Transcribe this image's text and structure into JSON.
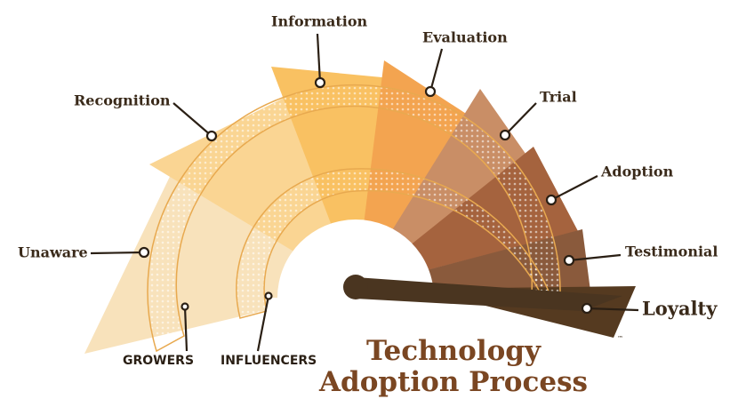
{
  "stages": [
    "Unaware",
    "Recognition",
    "Information",
    "Evaluation",
    "Trial",
    "Adoption",
    "Testimonial",
    "Loyalty"
  ],
  "groups": [
    "GROWERS",
    "INFLUENCERS"
  ],
  "title": [
    "Technology",
    "Adoption Process"
  ],
  "trademark": "™"
}
